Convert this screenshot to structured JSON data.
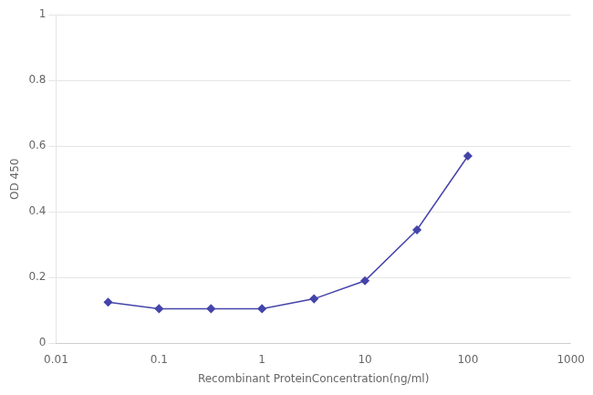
{
  "chart_data": {
    "type": "line",
    "x": [
      0.032,
      0.1,
      0.32,
      1.0,
      3.2,
      10.0,
      32.0,
      100.0
    ],
    "values": [
      0.125,
      0.105,
      0.105,
      0.105,
      0.135,
      0.19,
      0.345,
      0.57
    ],
    "color": "#4444aa",
    "marker": "diamond",
    "xlabel": "Recombinant ProteinConcentration(ng/ml)",
    "ylabel": "OD 450",
    "log": "x",
    "xlim": [
      0.01,
      1000
    ],
    "ylim": [
      0,
      1
    ],
    "xticks": [
      0.01,
      0.1,
      1,
      10,
      100,
      1000
    ],
    "yticks": [
      0,
      0.2,
      0.4,
      0.6,
      0.8,
      1
    ],
    "grid": "y"
  }
}
